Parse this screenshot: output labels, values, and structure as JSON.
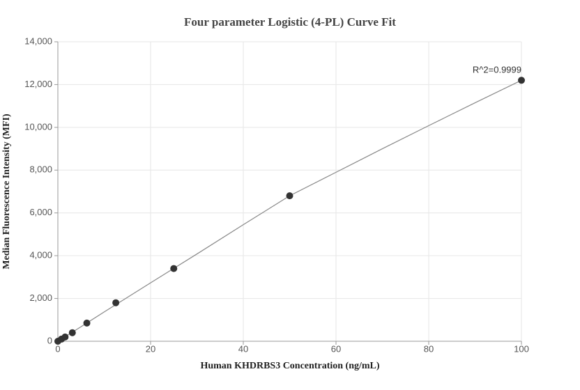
{
  "chart_data": {
    "type": "scatter",
    "title": "Four parameter Logistic (4-PL) Curve Fit",
    "x_label": "Human KHDRBS3 Concentration (ng/mL)",
    "y_label": "Median Fluorescence Intensity (MFI)",
    "x": [
      0,
      0.78,
      1.56,
      3.125,
      6.25,
      12.5,
      25,
      50,
      100
    ],
    "values": [
      0,
      100,
      200,
      400,
      850,
      1800,
      3400,
      6800,
      12200
    ],
    "color": "#333333",
    "fit": {
      "x": [
        0,
        5,
        10,
        20,
        30,
        40,
        50,
        60,
        70,
        80,
        90,
        100
      ],
      "values": [
        0,
        680,
        1370,
        2730,
        4080,
        5450,
        6800,
        7900,
        9000,
        10080,
        11150,
        12200
      ],
      "color": "#888888"
    },
    "annotation": "R^2=0.9999",
    "xlim": [
      0,
      100
    ],
    "xticks": [
      0,
      20,
      40,
      60,
      80,
      100
    ],
    "ylim": [
      0,
      14000
    ],
    "yticks": [
      0,
      {
        "value": 2000,
        "label": "2,000"
      },
      {
        "value": 4000,
        "label": "4,000"
      },
      {
        "value": 6000,
        "label": "6,000"
      },
      {
        "value": 8000,
        "label": "8,000"
      },
      {
        "value": 10000,
        "label": "10,000"
      },
      {
        "value": 12000,
        "label": "12,000"
      },
      {
        "value": 14000,
        "label": "14,000"
      }
    ],
    "grid": true
  }
}
